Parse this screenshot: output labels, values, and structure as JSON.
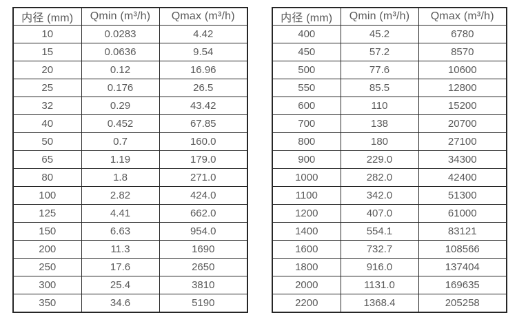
{
  "colors": {
    "text": "#595959",
    "border": "#262626",
    "background": "#ffffff"
  },
  "tables": [
    {
      "name": "flow-spec-small-diameters",
      "headers": [
        "内径 (mm)",
        "Qmin (m³/h)",
        "Qmax (m³/h)"
      ],
      "rows": [
        [
          "10",
          "0.0283",
          "4.42"
        ],
        [
          "15",
          "0.0636",
          "9.54"
        ],
        [
          "20",
          "0.12",
          "16.96"
        ],
        [
          "25",
          "0.176",
          "26.5"
        ],
        [
          "32",
          "0.29",
          "43.42"
        ],
        [
          "40",
          "0.452",
          "67.85"
        ],
        [
          "50",
          "0.7",
          "160.0"
        ],
        [
          "65",
          "1.19",
          "179.0"
        ],
        [
          "80",
          "1.8",
          "271.0"
        ],
        [
          "100",
          "2.82",
          "424.0"
        ],
        [
          "125",
          "4.41",
          "662.0"
        ],
        [
          "150",
          "6.63",
          "954.0"
        ],
        [
          "200",
          "11.3",
          "1690"
        ],
        [
          "250",
          "17.6",
          "2650"
        ],
        [
          "300",
          "25.4",
          "3810"
        ],
        [
          "350",
          "34.6",
          "5190"
        ]
      ]
    },
    {
      "name": "flow-spec-large-diameters",
      "headers": [
        "内径 (mm)",
        "Qmin (m³/h)",
        "Qmax (m³/h)"
      ],
      "rows": [
        [
          "400",
          "45.2",
          "6780"
        ],
        [
          "450",
          "57.2",
          "8570"
        ],
        [
          "500",
          "77.6",
          "10600"
        ],
        [
          "550",
          "85.5",
          "12800"
        ],
        [
          "600",
          "110",
          "15200"
        ],
        [
          "700",
          "138",
          "20700"
        ],
        [
          "800",
          "180",
          "27100"
        ],
        [
          "900",
          "229.0",
          "34300"
        ],
        [
          "1000",
          "282.0",
          "42400"
        ],
        [
          "1100",
          "342.0",
          "51300"
        ],
        [
          "1200",
          "407.0",
          "61000"
        ],
        [
          "1400",
          "554.1",
          "83121"
        ],
        [
          "1600",
          "732.7",
          "108566"
        ],
        [
          "1800",
          "916.0",
          "137404"
        ],
        [
          "2000",
          "1131.0",
          "169635"
        ],
        [
          "2200",
          "1368.4",
          "205258"
        ]
      ]
    }
  ]
}
